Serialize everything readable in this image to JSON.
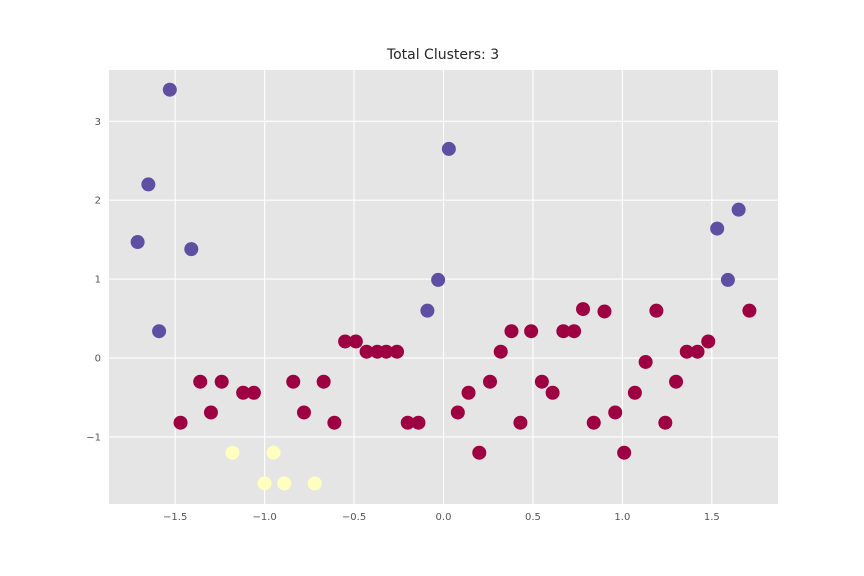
{
  "chart_data": {
    "type": "scatter",
    "title": "Total Clusters: 3",
    "xlabel": "",
    "ylabel": "",
    "xlim": [
      -1.87,
      1.87
    ],
    "ylim": [
      -1.85,
      3.65
    ],
    "xticks": [
      -1.5,
      -1.0,
      -0.5,
      0.0,
      0.5,
      1.0,
      1.5
    ],
    "xtick_labels": [
      "−1.5",
      "−1.0",
      "−0.5",
      "0.0",
      "0.5",
      "1.0",
      "1.5"
    ],
    "yticks": [
      -1,
      0,
      1,
      2,
      3
    ],
    "ytick_labels": [
      "−1",
      "0",
      "1",
      "2",
      "3"
    ],
    "grid": true,
    "background": "#e5e5e5",
    "series": [
      {
        "color": "#5e4fa2",
        "points": [
          {
            "x": -1.71,
            "y": 1.47
          },
          {
            "x": -1.65,
            "y": 2.2
          },
          {
            "x": -1.59,
            "y": 0.34
          },
          {
            "x": -1.53,
            "y": 3.4
          },
          {
            "x": -1.41,
            "y": 1.38
          },
          {
            "x": -0.09,
            "y": 0.6
          },
          {
            "x": -0.03,
            "y": 0.99
          },
          {
            "x": 0.03,
            "y": 2.65
          },
          {
            "x": 1.53,
            "y": 1.64
          },
          {
            "x": 1.59,
            "y": 0.99
          },
          {
            "x": 1.65,
            "y": 1.88
          }
        ]
      },
      {
        "color": "#9e0142",
        "points": [
          {
            "x": -1.47,
            "y": -0.82
          },
          {
            "x": -1.36,
            "y": -0.3
          },
          {
            "x": -1.3,
            "y": -0.69
          },
          {
            "x": -1.24,
            "y": -0.3
          },
          {
            "x": -1.12,
            "y": -0.44
          },
          {
            "x": -1.06,
            "y": -0.44
          },
          {
            "x": -0.84,
            "y": -0.3
          },
          {
            "x": -0.78,
            "y": -0.69
          },
          {
            "x": -0.67,
            "y": -0.3
          },
          {
            "x": -0.61,
            "y": -0.82
          },
          {
            "x": -0.55,
            "y": 0.21
          },
          {
            "x": -0.49,
            "y": 0.21
          },
          {
            "x": -0.43,
            "y": 0.08
          },
          {
            "x": -0.37,
            "y": 0.08
          },
          {
            "x": -0.32,
            "y": 0.08
          },
          {
            "x": -0.26,
            "y": 0.08
          },
          {
            "x": -0.2,
            "y": -0.82
          },
          {
            "x": -0.14,
            "y": -0.82
          },
          {
            "x": 0.08,
            "y": -0.69
          },
          {
            "x": 0.14,
            "y": -0.44
          },
          {
            "x": 0.2,
            "y": -1.2
          },
          {
            "x": 0.26,
            "y": -0.3
          },
          {
            "x": 0.32,
            "y": 0.08
          },
          {
            "x": 0.38,
            "y": 0.34
          },
          {
            "x": 0.43,
            "y": -0.82
          },
          {
            "x": 0.49,
            "y": 0.34
          },
          {
            "x": 0.55,
            "y": -0.3
          },
          {
            "x": 0.61,
            "y": -0.44
          },
          {
            "x": 0.67,
            "y": 0.34
          },
          {
            "x": 0.73,
            "y": 0.34
          },
          {
            "x": 0.78,
            "y": 0.62
          },
          {
            "x": 0.84,
            "y": -0.82
          },
          {
            "x": 0.9,
            "y": 0.59
          },
          {
            "x": 0.96,
            "y": -0.69
          },
          {
            "x": 1.01,
            "y": -1.2
          },
          {
            "x": 1.07,
            "y": -0.44
          },
          {
            "x": 1.13,
            "y": -0.05
          },
          {
            "x": 1.19,
            "y": 0.6
          },
          {
            "x": 1.24,
            "y": -0.82
          },
          {
            "x": 1.3,
            "y": -0.3
          },
          {
            "x": 1.36,
            "y": 0.08
          },
          {
            "x": 1.42,
            "y": 0.08
          },
          {
            "x": 1.48,
            "y": 0.21
          },
          {
            "x": 1.71,
            "y": 0.6
          }
        ]
      },
      {
        "color": "#ffffbf",
        "points": [
          {
            "x": -1.18,
            "y": -1.2
          },
          {
            "x": -1.0,
            "y": -1.59
          },
          {
            "x": -0.95,
            "y": -1.2
          },
          {
            "x": -0.89,
            "y": -1.59
          },
          {
            "x": -0.72,
            "y": -1.59
          }
        ]
      }
    ]
  }
}
